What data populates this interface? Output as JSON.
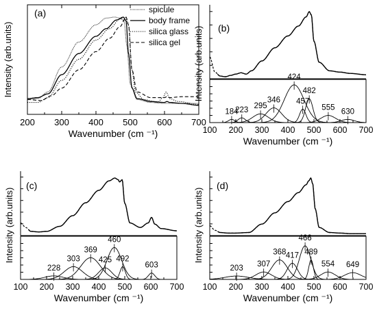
{
  "chart_data": [
    {
      "type": "line",
      "panel_label": "(a)",
      "xlabel": "Wavenumber (cm ⁻¹)",
      "ylabel": "Intensity (arb.units)",
      "xlim": [
        200,
        700
      ],
      "ylim": [
        0,
        1
      ],
      "xticks": [
        200,
        300,
        400,
        500,
        600,
        700
      ],
      "legend_position": "top-right",
      "series": [
        {
          "name": "spicule",
          "style": "dotted-fine",
          "x": [
            200,
            230,
            260,
            300,
            350,
            400,
            430,
            455,
            470,
            482,
            490,
            500,
            520,
            560,
            600,
            605,
            615,
            650,
            700
          ],
          "y": [
            0.14,
            0.15,
            0.22,
            0.48,
            0.74,
            0.92,
            0.99,
            1.0,
            0.99,
            0.96,
            0.7,
            0.3,
            0.14,
            0.11,
            0.1,
            0.1,
            0.1,
            0.1,
            0.1
          ]
        },
        {
          "name": "body frame",
          "style": "solid",
          "x": [
            200,
            230,
            260,
            300,
            350,
            400,
            430,
            460,
            480,
            488,
            495,
            505,
            520,
            560,
            600,
            607,
            615,
            650,
            700
          ],
          "y": [
            0.15,
            0.16,
            0.2,
            0.4,
            0.62,
            0.8,
            0.88,
            0.97,
            1.0,
            0.96,
            0.62,
            0.26,
            0.15,
            0.12,
            0.11,
            0.12,
            0.11,
            0.1,
            0.08
          ]
        },
        {
          "name": "silica glass",
          "style": "dotted",
          "x": [
            200,
            230,
            260,
            300,
            350,
            400,
            440,
            470,
            485,
            495,
            505,
            515,
            540,
            580,
            595,
            605,
            615,
            640,
            700
          ],
          "y": [
            0.11,
            0.11,
            0.16,
            0.34,
            0.56,
            0.76,
            0.88,
            0.98,
            1.0,
            0.92,
            0.45,
            0.22,
            0.14,
            0.11,
            0.16,
            0.22,
            0.15,
            0.12,
            0.09
          ]
        },
        {
          "name": "silica gel",
          "style": "dashed",
          "x": [
            200,
            240,
            270,
            300,
            350,
            400,
            440,
            470,
            488,
            495,
            505,
            520,
            560,
            600,
            607,
            615,
            650,
            700
          ],
          "y": [
            0.14,
            0.13,
            0.18,
            0.26,
            0.45,
            0.64,
            0.78,
            0.9,
            1.0,
            0.92,
            0.45,
            0.22,
            0.16,
            0.16,
            0.17,
            0.16,
            0.17,
            0.17
          ]
        }
      ]
    },
    {
      "type": "line",
      "panel_label": "(b)",
      "xlabel": "Wavenumber (cm ⁻¹)",
      "ylabel": "Intensity (arb.units)",
      "xlim": [
        100,
        700
      ],
      "xticks": [
        100,
        200,
        300,
        400,
        500,
        600,
        700
      ],
      "spectrum": {
        "x": [
          100,
          120,
          140,
          160,
          180,
          200,
          220,
          240,
          260,
          300,
          350,
          400,
          440,
          470,
          482,
          490,
          500,
          520,
          560,
          600,
          640,
          700
        ],
        "y": [
          0.31,
          0.08,
          0.02,
          0.01,
          0.03,
          0.05,
          0.07,
          0.05,
          0.1,
          0.25,
          0.45,
          0.63,
          0.78,
          0.92,
          1.0,
          0.95,
          0.55,
          0.23,
          0.1,
          0.08,
          0.06,
          0.04
        ]
      },
      "peaks": [
        {
          "center": 184,
          "height": 0.08,
          "width": 12,
          "label": "184"
        },
        {
          "center": 223,
          "height": 0.12,
          "width": 14,
          "label": "223"
        },
        {
          "center": 295,
          "height": 0.22,
          "width": 30,
          "label": "295"
        },
        {
          "center": 346,
          "height": 0.37,
          "width": 30,
          "label": "346"
        },
        {
          "center": 424,
          "height": 0.95,
          "width": 38,
          "label": "424"
        },
        {
          "center": 457,
          "height": 0.34,
          "width": 12,
          "label": "457"
        },
        {
          "center": 482,
          "height": 0.6,
          "width": 14,
          "label": "482"
        },
        {
          "center": 555,
          "height": 0.18,
          "width": 28,
          "label": "555"
        },
        {
          "center": 630,
          "height": 0.08,
          "width": 25,
          "label": "630"
        }
      ]
    },
    {
      "type": "line",
      "panel_label": "(c)",
      "xlabel": "Wavenumber (cm ⁻¹)",
      "ylabel": "Intensity (arb.units)",
      "xlim": [
        100,
        700
      ],
      "xticks": [
        100,
        200,
        300,
        400,
        500,
        600,
        700
      ],
      "spectrum": {
        "x": [
          100,
          120,
          140,
          170,
          200,
          250,
          300,
          350,
          400,
          440,
          462,
          475,
          480,
          490,
          500,
          520,
          560,
          590,
          603,
          615,
          640,
          700
        ],
        "y": [
          0.2,
          0.12,
          0.05,
          0.04,
          0.05,
          0.14,
          0.33,
          0.56,
          0.78,
          0.95,
          1.0,
          0.97,
          0.93,
          0.97,
          0.55,
          0.2,
          0.12,
          0.2,
          0.3,
          0.18,
          0.1,
          0.06
        ]
      },
      "peaks": [
        {
          "center": 228,
          "height": 0.11,
          "width": 35,
          "label": "228"
        },
        {
          "center": 303,
          "height": 0.4,
          "width": 35,
          "label": "303"
        },
        {
          "center": 369,
          "height": 0.68,
          "width": 38,
          "label": "369"
        },
        {
          "center": 425,
          "height": 0.36,
          "width": 25,
          "label": "425"
        },
        {
          "center": 460,
          "height": 1.0,
          "width": 28,
          "label": "460"
        },
        {
          "center": 492,
          "height": 0.4,
          "width": 10,
          "label": "492"
        },
        {
          "center": 603,
          "height": 0.2,
          "width": 12,
          "label": "603"
        }
      ]
    },
    {
      "type": "line",
      "panel_label": "(d)",
      "xlabel": "Wavenumber (cm ⁻¹)",
      "ylabel": "Intensity (arb.units)",
      "xlim": [
        100,
        700
      ],
      "xticks": [
        100,
        200,
        300,
        400,
        500,
        600,
        700
      ],
      "spectrum": {
        "x": [
          100,
          120,
          140,
          170,
          200,
          250,
          300,
          350,
          400,
          440,
          470,
          480,
          488,
          495,
          505,
          520,
          560,
          600,
          640,
          700
        ],
        "y": [
          0.15,
          0.07,
          0.03,
          0.02,
          0.02,
          0.03,
          0.18,
          0.38,
          0.58,
          0.74,
          0.88,
          0.95,
          1.0,
          0.9,
          0.45,
          0.12,
          0.03,
          0.02,
          0.01,
          0.01
        ]
      },
      "peaks": [
        {
          "center": 203,
          "height": 0.1,
          "width": 45,
          "label": "203"
        },
        {
          "center": 307,
          "height": 0.22,
          "width": 30,
          "label": "307"
        },
        {
          "center": 368,
          "height": 0.58,
          "width": 30,
          "label": "368"
        },
        {
          "center": 417,
          "height": 0.48,
          "width": 20,
          "label": "417"
        },
        {
          "center": 466,
          "height": 1.0,
          "width": 22,
          "label": "466"
        },
        {
          "center": 489,
          "height": 0.58,
          "width": 9,
          "label": "489"
        },
        {
          "center": 554,
          "height": 0.22,
          "width": 28,
          "label": "554"
        },
        {
          "center": 649,
          "height": 0.2,
          "width": 32,
          "label": "649"
        }
      ]
    }
  ]
}
